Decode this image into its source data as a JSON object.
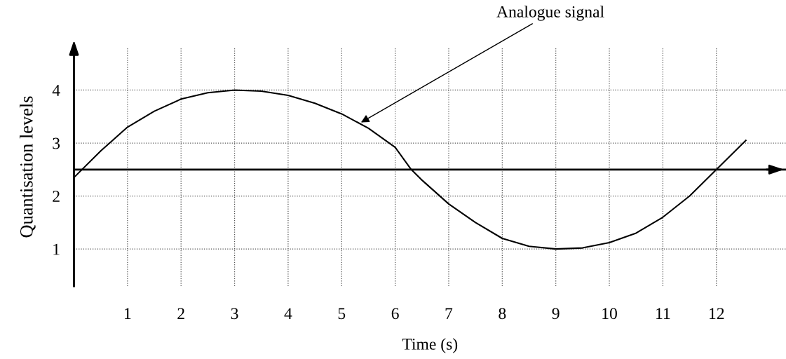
{
  "chart_data": {
    "type": "line",
    "xlabel": "Time (s)",
    "ylabel": "Quantisation levels",
    "x": [
      0,
      0.5,
      1,
      1.5,
      2,
      2.5,
      3,
      3.5,
      4,
      4.5,
      5,
      5.5,
      6,
      6.3,
      6.5,
      7,
      7.5,
      8,
      8.5,
      9,
      9.5,
      10,
      10.5,
      11,
      11.5,
      12,
      12.55
    ],
    "series": [
      {
        "color": "#000000",
        "values": [
          2.35,
          2.85,
          3.3,
          3.6,
          3.83,
          3.95,
          4.0,
          3.98,
          3.9,
          3.75,
          3.55,
          3.28,
          2.92,
          2.5,
          2.3,
          1.85,
          1.5,
          1.2,
          1.05,
          1.0,
          1.02,
          1.12,
          1.3,
          1.6,
          2.0,
          2.5,
          3.05
        ]
      }
    ],
    "xlim": [
      0,
      13.3
    ],
    "ylim": [
      0.3,
      4.8
    ],
    "xticks": [
      1,
      2,
      3,
      4,
      5,
      6,
      7,
      8,
      9,
      10,
      11,
      12
    ],
    "yticks": [
      1,
      2,
      3,
      4
    ],
    "grid": true,
    "line_style": "solid",
    "marker": "none",
    "ref_lines": [
      {
        "axis": "y",
        "value": 2.5,
        "color": "#000000",
        "line_style": "solid"
      }
    ],
    "annotations": [
      {
        "text": "Analogue signal",
        "x": 5.33,
        "y": 3.37
      }
    ]
  }
}
